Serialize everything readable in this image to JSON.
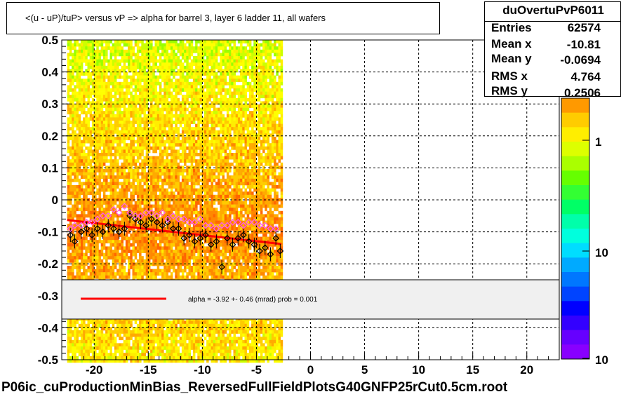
{
  "title": "<(u - uP)/tuP>  versus   vP => alpha for barrel 3, layer 6 ladder 11, all wafers",
  "stats": {
    "name": "duOvertuPvP6011",
    "rows": [
      {
        "label": "Entries",
        "value": "62574"
      },
      {
        "label": "Mean x",
        "value": "-10.81"
      },
      {
        "label": "Mean y",
        "value": "-0.0694"
      },
      {
        "label": "RMS x",
        "value": "4.764"
      },
      {
        "label": "RMS y",
        "value": "0.2506"
      }
    ]
  },
  "legend": {
    "fit_text": "alpha =   -3.92 +-  0.46 (mrad) prob = 0.001",
    "fit_color": "#ff0000"
  },
  "colorbar": {
    "tick_labels": [
      "1",
      "10",
      "10"
    ]
  },
  "footer": "P06ic_cuProductionMinBias_ReversedFullFieldPlotsG40GNFP25rCut0.5cm.root",
  "chart_data": {
    "type": "scatter",
    "xlim": [
      -23,
      23
    ],
    "ylim": [
      -0.5,
      0.5
    ],
    "x_ticks": [
      -20,
      -15,
      -10,
      -5,
      0,
      5,
      10,
      15,
      20
    ],
    "y_ticks": [
      0.5,
      0.4,
      0.3,
      0.2,
      0.1,
      0,
      -0.1,
      -0.2,
      -0.3,
      -0.4,
      -0.5
    ],
    "x_tick_labels": [
      "-20",
      "-15",
      "-10",
      "-5",
      "0",
      "5",
      "10",
      "15",
      "20"
    ],
    "y_tick_labels": [
      "0.5",
      "0.4",
      "0.3",
      "0.2",
      "0.1",
      "0",
      "-0.1",
      "-0.2",
      "-0.3",
      "-0.4",
      "-0.5"
    ],
    "grid": true,
    "heatmap_x_range": [
      -22.5,
      -2.7
    ],
    "fit_line": {
      "x": [
        -22.5,
        -2.7
      ],
      "y": [
        -0.063,
        -0.138
      ]
    },
    "series": [
      {
        "color": "#000000",
        "x": [
          -22.2,
          -21.8,
          -21.2,
          -20.7,
          -20.2,
          -19.7,
          -19.2,
          -18.7,
          -18.2,
          -17.7,
          -17.2,
          -16.7,
          -16.2,
          -15.7,
          -15.2,
          -14.7,
          -14.2,
          -13.7,
          -13.2,
          -12.7,
          -12.2,
          -11.7,
          -11.2,
          -10.7,
          -10.2,
          -9.7,
          -9.2,
          -8.7,
          -8.2,
          -7.7,
          -7.2,
          -6.7,
          -6.2,
          -5.7,
          -5.2,
          -4.7,
          -4.2,
          -3.7,
          -3.2,
          -2.8
        ],
        "y": [
          -0.11,
          -0.13,
          -0.1,
          -0.09,
          -0.11,
          -0.09,
          -0.1,
          -0.08,
          -0.09,
          -0.1,
          -0.09,
          -0.05,
          -0.06,
          -0.07,
          -0.08,
          -0.06,
          -0.07,
          -0.08,
          -0.07,
          -0.09,
          -0.09,
          -0.12,
          -0.11,
          -0.13,
          -0.12,
          -0.11,
          -0.14,
          -0.13,
          -0.21,
          -0.12,
          -0.14,
          -0.12,
          -0.11,
          -0.13,
          -0.14,
          -0.16,
          -0.15,
          -0.17,
          -0.12,
          -0.16
        ]
      },
      {
        "color": "#ff55ff",
        "x": [
          -22.2,
          -21.8,
          -21.2,
          -20.7,
          -20.2,
          -19.7,
          -19.2,
          -18.7,
          -18.2,
          -17.7,
          -17.2,
          -16.7,
          -16.2,
          -15.7,
          -15.2,
          -14.7,
          -14.2,
          -13.7,
          -13.2,
          -12.7,
          -12.2,
          -11.7,
          -11.2,
          -10.7,
          -10.2,
          -9.7,
          -9.2,
          -8.7,
          -8.2,
          -7.7,
          -7.2,
          -6.7,
          -6.2,
          -5.7,
          -5.2,
          -4.7,
          -4.2,
          -3.7,
          -3.2
        ],
        "y": [
          -0.09,
          -0.08,
          -0.08,
          -0.07,
          -0.07,
          -0.06,
          -0.05,
          -0.05,
          -0.03,
          -0.04,
          -0.02,
          -0.04,
          -0.05,
          -0.05,
          -0.04,
          -0.04,
          -0.05,
          -0.04,
          -0.06,
          -0.05,
          -0.06,
          -0.06,
          -0.07,
          -0.07,
          -0.06,
          -0.08,
          -0.08,
          -0.09,
          -0.08,
          -0.08,
          -0.07,
          -0.07,
          -0.08,
          -0.07,
          -0.07,
          -0.08,
          -0.08,
          -0.09,
          -0.09
        ]
      }
    ]
  },
  "style": {
    "heat_colors": [
      "#99ff00",
      "#ccff00",
      "#ffff00",
      "#ffee00",
      "#ffcc00",
      "#ffaa00",
      "#ff8800",
      "#ff6600"
    ],
    "colorbar_colors": [
      "#ff9900",
      "#ffcc00",
      "#ffee00",
      "#ddff00",
      "#aaff00",
      "#66ff00",
      "#33ff33",
      "#00ff66",
      "#00ffaa",
      "#00ffdd",
      "#00ddff",
      "#00aaff",
      "#0077ff",
      "#0044ff",
      "#0000ff",
      "#3300ff",
      "#6600ff",
      "#8800ff"
    ]
  }
}
